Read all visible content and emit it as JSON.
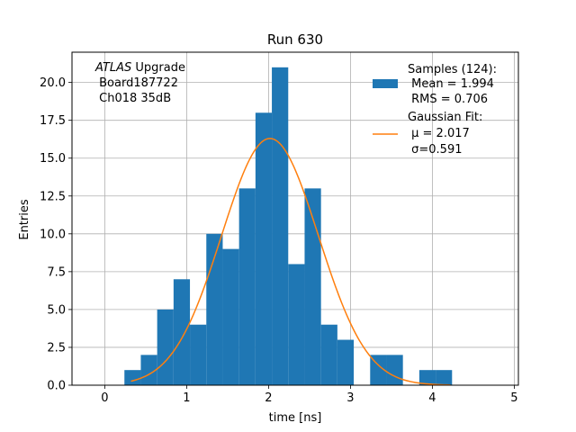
{
  "chart_data": {
    "type": "bar",
    "title": "Run 630",
    "xlabel": "time [ns]",
    "ylabel": "Entries",
    "xlim": [
      -0.4,
      5.05
    ],
    "ylim": [
      0,
      22.0
    ],
    "grid": true,
    "legend_position": "top-right",
    "xticks": [
      0,
      1,
      2,
      3,
      4,
      5
    ],
    "xtick_labels": [
      "0",
      "1",
      "2",
      "3",
      "4",
      "5"
    ],
    "yticks": [
      0,
      2.5,
      5,
      7.5,
      10,
      12.5,
      15,
      17.5,
      20
    ],
    "ytick_labels": [
      "0.0",
      "2.5",
      "5.0",
      "7.5",
      "10.0",
      "12.5",
      "15.0",
      "17.5",
      "20.0"
    ],
    "annotation": {
      "italic_part": "ATLAS",
      "line1_rest": " Upgrade",
      "line2": " Board187722",
      "line3": " Ch018 35dB"
    },
    "legend": {
      "hist_lines": [
        "Samples (124):",
        " Mean = 1.994",
        " RMS = 0.706"
      ],
      "fit_lines": [
        "Gaussian Fit:",
        " μ = 2.017",
        " σ=0.591"
      ]
    },
    "histogram": {
      "color": "#1f77b4",
      "bins": [
        {
          "x0": 0.24,
          "x1": 0.44,
          "value": 1
        },
        {
          "x0": 0.44,
          "x1": 0.64,
          "value": 2
        },
        {
          "x0": 0.64,
          "x1": 0.84,
          "value": 5
        },
        {
          "x0": 0.84,
          "x1": 1.04,
          "value": 7
        },
        {
          "x0": 1.04,
          "x1": 1.24,
          "value": 4
        },
        {
          "x0": 1.24,
          "x1": 1.44,
          "value": 10
        },
        {
          "x0": 1.44,
          "x1": 1.64,
          "value": 9
        },
        {
          "x0": 1.64,
          "x1": 1.84,
          "value": 13
        },
        {
          "x0": 1.84,
          "x1": 2.04,
          "value": 18
        },
        {
          "x0": 2.04,
          "x1": 2.24,
          "value": 21
        },
        {
          "x0": 2.24,
          "x1": 2.44,
          "value": 8
        },
        {
          "x0": 2.44,
          "x1": 2.64,
          "value": 13
        },
        {
          "x0": 2.64,
          "x1": 2.84,
          "value": 4
        },
        {
          "x0": 2.84,
          "x1": 3.04,
          "value": 3
        },
        {
          "x0": 3.04,
          "x1": 3.24,
          "value": 0
        },
        {
          "x0": 3.24,
          "x1": 3.44,
          "value": 2
        },
        {
          "x0": 3.44,
          "x1": 3.64,
          "value": 2
        },
        {
          "x0": 3.64,
          "x1": 3.84,
          "value": 0
        },
        {
          "x0": 3.84,
          "x1": 4.04,
          "value": 1
        },
        {
          "x0": 4.04,
          "x1": 4.24,
          "value": 1
        }
      ]
    },
    "fit": {
      "color": "#ff7f0e",
      "mu": 2.017,
      "sigma": 0.591,
      "amplitude": 16.3,
      "x_range": [
        0.32,
        4.22
      ]
    }
  }
}
